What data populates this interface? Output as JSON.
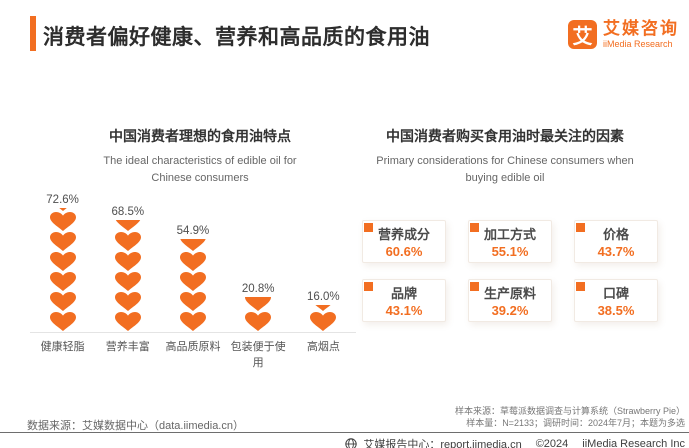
{
  "colors": {
    "accent": "#F26E21"
  },
  "header": {
    "title": "消费者偏好健康、营养和高品质的食用油"
  },
  "logo": {
    "mark": "艾",
    "name_cn": "艾媒咨询",
    "name_en": "iiMedia Research"
  },
  "chart_data": [
    {
      "type": "bar",
      "variant": "pictograph-hearts",
      "title": "中国消费者理想的食用油特点",
      "subtitle_lines": [
        "The ideal characteristics of edible oil for",
        "Chinese consumers"
      ],
      "categories": [
        "健康轻脂",
        "营养丰富",
        "高品质原料",
        "包装便于使用",
        "高烟点"
      ],
      "values": [
        72.6,
        68.5,
        54.9,
        20.8,
        16.0
      ],
      "value_labels": [
        "72.6%",
        "68.5%",
        "54.9%",
        "20.8%",
        "16.0%"
      ],
      "icon": "heart",
      "full_icons": [
        6,
        5,
        4,
        1,
        1
      ],
      "partial_icon_fraction": [
        0.15,
        0.55,
        0.6,
        0.7,
        0.3
      ],
      "ylim": [
        0,
        100
      ],
      "grid": false
    },
    {
      "type": "table",
      "variant": "stat-cards",
      "title": "中国消费者购买食用油时最关注的因素",
      "subtitle_lines": [
        "Primary considerations for Chinese consumers when",
        "buying edible oil"
      ],
      "items": [
        {
          "label": "营养成分",
          "value": "60.6%"
        },
        {
          "label": "加工方式",
          "value": "55.1%"
        },
        {
          "label": "价格",
          "value": "43.7%"
        },
        {
          "label": "品牌",
          "value": "43.1%"
        },
        {
          "label": "生产原料",
          "value": "39.2%"
        },
        {
          "label": "口碑",
          "value": "38.5%"
        }
      ]
    }
  ],
  "footer": {
    "data_source": "数据来源：艾媒数据中心（data.iimedia.cn）",
    "sample_source": "样本来源：草莓派数据调查与计算系统（Strawberry Pie）",
    "sample_info": "样本量：N=2133；调研时间：2024年7月；本题为多选",
    "report_center": "艾媒报告中心：report.iimedia.cn",
    "copyright": "©2024",
    "company": "iiMedia Research Inc"
  }
}
